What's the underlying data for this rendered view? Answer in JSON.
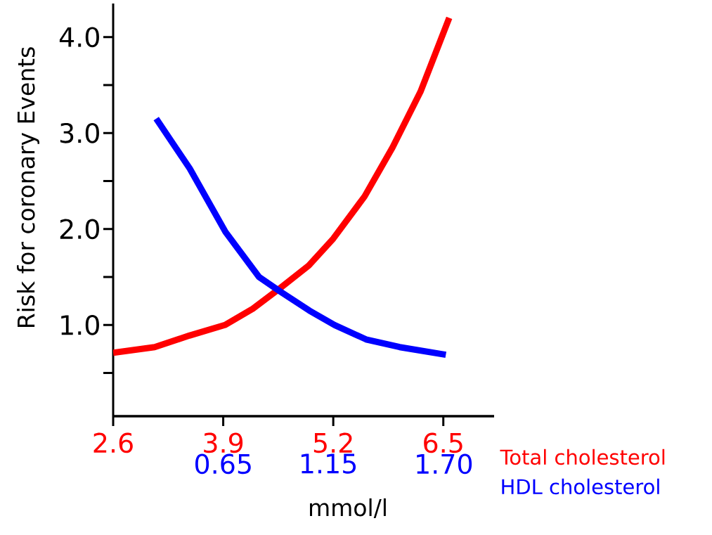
{
  "chart_data": {
    "type": "line",
    "ylabel": "Risk for coronary Events",
    "xlabel": "mmol/l",
    "xlim": [
      2.6,
      7.1
    ],
    "xticks": [
      2.6,
      3.9,
      5.2,
      6.5
    ],
    "x2lim": [
      0.125,
      1.94
    ],
    "x2ticks": [
      0.65,
      1.15,
      {
        "value": 1.7,
        "label": "1.70"
      }
    ],
    "ylim": [
      0.05,
      4.35
    ],
    "yticks": [
      {
        "value": 0.5,
        "label": null
      },
      {
        "value": 1,
        "label": "1.0"
      },
      {
        "value": 1.5,
        "label": null
      },
      {
        "value": 2,
        "label": "2.0"
      },
      {
        "value": 2.5,
        "label": null
      },
      {
        "value": 3,
        "label": "3.0"
      },
      {
        "value": 3.5,
        "label": null
      },
      {
        "value": 4,
        "label": "4.0"
      }
    ],
    "series": [
      {
        "name": "Total cholesterol",
        "color": "#ff0000",
        "x": [
          2.6,
          3.09,
          3.5,
          3.92,
          4.25,
          4.58,
          4.91,
          5.2,
          5.57,
          5.9,
          6.23,
          6.57
        ],
        "values": [
          0.71,
          0.77,
          0.89,
          1.0,
          1.17,
          1.39,
          1.62,
          1.9,
          2.34,
          2.85,
          3.43,
          4.2
        ]
      },
      {
        "name": "HDL cholesterol",
        "color": "#0000ff",
        "axis": "x2",
        "x": [
          0.33,
          0.49,
          0.66,
          0.82,
          0.92,
          1.06,
          1.18,
          1.33,
          1.49,
          1.71
        ],
        "values": [
          3.15,
          2.63,
          1.97,
          1.5,
          1.35,
          1.15,
          1.0,
          0.85,
          0.77,
          0.69
        ]
      }
    ]
  }
}
